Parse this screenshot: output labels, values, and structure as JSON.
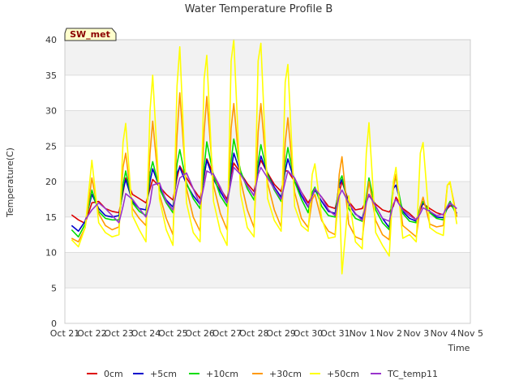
{
  "chart_data": {
    "type": "line",
    "title": "Water Temperature Profile B",
    "xlabel": "Time",
    "ylabel": "Temperature(C)",
    "badge": "SW_met",
    "ylim": [
      0,
      40
    ],
    "yticks": [
      0,
      5,
      10,
      15,
      20,
      25,
      30,
      35,
      40
    ],
    "xlim": [
      0,
      15
    ],
    "xticks": [
      "Oct 21",
      "Oct 22",
      "Oct 23",
      "Oct 24",
      "Oct 25",
      "Oct 26",
      "Oct 27",
      "Oct 28",
      "Oct 29",
      "Oct 30",
      "Oct 31",
      "Nov 1",
      "Nov 2",
      "Nov 3",
      "Nov 4",
      "Nov 5"
    ],
    "grid": true,
    "legend_position": "bottom",
    "series": [
      {
        "name": "0cm",
        "color": "#dd0000",
        "x": [
          0.25,
          0.5,
          0.75,
          1.0,
          1.25,
          1.5,
          1.75,
          2.0,
          2.15,
          2.25,
          2.5,
          2.75,
          3.0,
          3.15,
          3.25,
          3.5,
          3.75,
          4.0,
          4.15,
          4.25,
          4.5,
          4.75,
          5.0,
          5.15,
          5.25,
          5.5,
          5.75,
          6.0,
          6.15,
          6.25,
          6.5,
          6.75,
          7.0,
          7.15,
          7.25,
          7.5,
          7.75,
          8.0,
          8.15,
          8.25,
          8.5,
          8.75,
          9.0,
          9.15,
          9.25,
          9.5,
          9.75,
          10.0,
          10.15,
          10.25,
          10.5,
          10.75,
          11.0,
          11.15,
          11.25,
          11.5,
          11.75,
          12.0,
          12.15,
          12.25,
          12.5,
          12.75,
          13.0,
          13.15,
          13.25,
          13.5,
          13.75,
          14.0,
          14.15,
          14.25,
          14.5
        ],
        "y": [
          15.3,
          14.6,
          14.1,
          17.0,
          17.2,
          16.2,
          15.8,
          15.6,
          18.5,
          20.5,
          18.2,
          17.6,
          17.0,
          19.0,
          20.3,
          19.3,
          18.2,
          17.4,
          20.5,
          22.2,
          20.5,
          19.0,
          17.6,
          20.6,
          23.2,
          21.0,
          19.0,
          17.5,
          21.0,
          22.6,
          21.2,
          19.7,
          18.6,
          21.8,
          23.0,
          21.2,
          19.6,
          18.6,
          21.5,
          21.5,
          20.0,
          18.5,
          17.0,
          18.0,
          18.8,
          17.8,
          16.5,
          16.2,
          18.5,
          20.0,
          17.2,
          16.0,
          16.2,
          17.3,
          18.0,
          16.8,
          16.0,
          15.7,
          16.5,
          17.8,
          16.2,
          15.5,
          14.6,
          16.0,
          16.9,
          16.2,
          15.6,
          15.3,
          16.2,
          16.6,
          16.2
        ]
      },
      {
        "name": "+5cm",
        "color": "#0000cc",
        "x": [
          0.25,
          0.5,
          0.75,
          1.0,
          1.25,
          1.5,
          1.75,
          2.0,
          2.15,
          2.25,
          2.5,
          2.75,
          3.0,
          3.15,
          3.25,
          3.5,
          3.75,
          4.0,
          4.15,
          4.25,
          4.5,
          4.75,
          5.0,
          5.15,
          5.25,
          5.5,
          5.75,
          6.0,
          6.15,
          6.25,
          6.5,
          6.75,
          7.0,
          7.15,
          7.25,
          7.5,
          7.75,
          8.0,
          8.15,
          8.25,
          8.5,
          8.75,
          9.0,
          9.15,
          9.25,
          9.5,
          9.75,
          10.0,
          10.15,
          10.25,
          10.5,
          10.75,
          11.0,
          11.15,
          11.25,
          11.5,
          11.75,
          12.0,
          12.15,
          12.25,
          12.5,
          12.75,
          13.0,
          13.15,
          13.25,
          13.5,
          13.75,
          14.0,
          14.15,
          14.25,
          14.5
        ],
        "y": [
          13.8,
          13.0,
          14.4,
          18.2,
          16.2,
          15.2,
          15.0,
          15.2,
          18.8,
          20.3,
          17.2,
          16.2,
          16.0,
          20.0,
          21.8,
          19.2,
          17.4,
          16.4,
          21.2,
          22.0,
          19.6,
          18.0,
          16.8,
          21.0,
          23.0,
          20.3,
          18.6,
          17.0,
          21.5,
          24.0,
          21.2,
          19.4,
          18.0,
          21.8,
          23.6,
          21.0,
          19.2,
          17.8,
          21.5,
          23.2,
          20.0,
          18.0,
          16.4,
          18.0,
          18.8,
          17.2,
          15.8,
          15.5,
          19.5,
          20.3,
          16.8,
          15.4,
          14.8,
          17.2,
          18.2,
          16.5,
          14.8,
          13.5,
          19.0,
          19.5,
          15.8,
          14.8,
          14.4,
          16.2,
          17.0,
          15.8,
          15.0,
          14.9,
          16.3,
          17.0,
          15.5
        ]
      },
      {
        "name": "+10cm",
        "color": "#00dd00",
        "x": [
          0.25,
          0.5,
          0.75,
          1.0,
          1.25,
          1.5,
          1.75,
          2.0,
          2.15,
          2.25,
          2.5,
          2.75,
          3.0,
          3.15,
          3.25,
          3.5,
          3.75,
          4.0,
          4.15,
          4.25,
          4.5,
          4.75,
          5.0,
          5.15,
          5.25,
          5.5,
          5.75,
          6.0,
          6.15,
          6.25,
          6.5,
          6.75,
          7.0,
          7.15,
          7.25,
          7.5,
          7.75,
          8.0,
          8.15,
          8.25,
          8.5,
          8.75,
          9.0,
          9.15,
          9.25,
          9.5,
          9.75,
          10.0,
          10.15,
          10.25,
          10.5,
          10.75,
          11.0,
          11.15,
          11.25,
          11.5,
          11.75,
          12.0,
          12.15,
          12.25,
          12.5,
          12.75,
          13.0,
          13.15,
          13.25,
          13.5,
          13.75,
          14.0,
          14.15,
          14.25,
          14.5
        ],
        "y": [
          13.2,
          12.2,
          14.0,
          18.8,
          15.8,
          14.8,
          14.6,
          14.6,
          19.5,
          21.5,
          17.0,
          15.8,
          15.2,
          21.2,
          22.8,
          19.0,
          17.0,
          15.6,
          22.5,
          24.5,
          19.8,
          17.6,
          16.2,
          22.0,
          25.6,
          20.8,
          18.0,
          16.5,
          22.8,
          26.0,
          21.5,
          19.0,
          17.4,
          22.8,
          25.2,
          21.0,
          18.8,
          17.2,
          22.5,
          24.8,
          20.0,
          17.5,
          15.6,
          18.5,
          19.2,
          16.5,
          15.2,
          15.0,
          20.0,
          20.8,
          16.2,
          14.8,
          14.4,
          17.8,
          20.5,
          16.0,
          14.2,
          13.2,
          19.8,
          20.5,
          15.5,
          14.4,
          14.2,
          16.5,
          17.2,
          15.6,
          14.8,
          14.6,
          16.5,
          17.2,
          15.2
        ]
      },
      {
        "name": "+30cm",
        "color": "#ff9900",
        "x": [
          0.25,
          0.5,
          0.75,
          1.0,
          1.25,
          1.5,
          1.75,
          2.0,
          2.15,
          2.25,
          2.5,
          2.75,
          3.0,
          3.15,
          3.25,
          3.5,
          3.75,
          4.0,
          4.15,
          4.25,
          4.5,
          4.75,
          5.0,
          5.15,
          5.25,
          5.5,
          5.75,
          6.0,
          6.15,
          6.25,
          6.5,
          6.75,
          7.0,
          7.15,
          7.25,
          7.5,
          7.75,
          8.0,
          8.15,
          8.25,
          8.5,
          8.75,
          9.0,
          9.15,
          9.25,
          9.5,
          9.75,
          10.0,
          10.15,
          10.25,
          10.5,
          10.75,
          11.0,
          11.15,
          11.25,
          11.5,
          11.75,
          12.0,
          12.15,
          12.25,
          12.5,
          12.75,
          13.0,
          13.15,
          13.25,
          13.5,
          13.75,
          14.0,
          14.15,
          14.25,
          14.5
        ],
        "y": [
          12.0,
          11.5,
          13.5,
          20.5,
          15.5,
          13.8,
          13.2,
          13.6,
          22.0,
          24.0,
          16.2,
          14.8,
          13.8,
          24.0,
          28.5,
          18.2,
          14.8,
          12.5,
          26.5,
          32.5,
          19.0,
          15.0,
          13.0,
          27.0,
          32.0,
          19.5,
          15.5,
          13.2,
          27.5,
          31.0,
          20.2,
          16.0,
          13.5,
          27.0,
          31.0,
          19.8,
          16.0,
          13.6,
          25.5,
          29.0,
          18.5,
          14.8,
          13.5,
          17.5,
          18.2,
          14.5,
          13.0,
          12.5,
          21.0,
          23.5,
          14.0,
          12.2,
          11.8,
          17.0,
          20.0,
          14.5,
          12.5,
          11.8,
          19.0,
          21.0,
          13.8,
          13.0,
          12.2,
          16.5,
          17.8,
          14.0,
          13.6,
          13.8,
          19.5,
          19.8,
          15.0
        ]
      },
      {
        "name": "+50cm",
        "color": "#ffff00",
        "x": [
          0.25,
          0.5,
          0.75,
          1.0,
          1.25,
          1.5,
          1.75,
          2.0,
          2.15,
          2.25,
          2.5,
          2.75,
          3.0,
          3.15,
          3.25,
          3.5,
          3.75,
          4.0,
          4.15,
          4.25,
          4.5,
          4.75,
          5.0,
          5.15,
          5.25,
          5.5,
          5.75,
          6.0,
          6.15,
          6.25,
          6.5,
          6.75,
          7.0,
          7.15,
          7.25,
          7.5,
          7.75,
          8.0,
          8.15,
          8.25,
          8.5,
          8.75,
          9.0,
          9.15,
          9.25,
          9.5,
          9.75,
          10.0,
          10.15,
          10.25,
          10.5,
          10.75,
          11.0,
          11.15,
          11.25,
          11.5,
          11.75,
          12.0,
          12.15,
          12.25,
          12.5,
          12.75,
          13.0,
          13.15,
          13.25,
          13.5,
          13.75,
          14.0,
          14.15,
          14.25,
          14.5
        ],
        "y": [
          11.8,
          10.8,
          13.5,
          23.0,
          14.2,
          12.8,
          12.2,
          12.5,
          25.5,
          28.2,
          15.2,
          13.2,
          11.5,
          30.0,
          35.0,
          17.5,
          13.2,
          11.0,
          33.5,
          39.0,
          17.0,
          12.8,
          11.5,
          34.5,
          37.8,
          17.2,
          13.0,
          11.0,
          37.0,
          40.0,
          18.2,
          13.5,
          12.2,
          37.0,
          39.5,
          17.6,
          14.5,
          13.0,
          34.0,
          36.5,
          16.5,
          13.8,
          13.0,
          21.0,
          22.5,
          14.8,
          12.0,
          12.2,
          19.0,
          7.0,
          18.0,
          11.5,
          10.5,
          24.0,
          28.3,
          12.8,
          11.0,
          9.5,
          20.0,
          22.0,
          12.0,
          12.5,
          11.5,
          24.0,
          25.5,
          13.5,
          12.8,
          12.4,
          19.5,
          20.0,
          14.0
        ]
      },
      {
        "name": "TC_temp11",
        "color": "#9933cc",
        "x": [
          0.75,
          1.0,
          1.25,
          1.5,
          1.75,
          2.0,
          2.15,
          2.25,
          2.5,
          2.75,
          3.0,
          3.15,
          3.25,
          3.5,
          3.75,
          4.0,
          4.15,
          4.25,
          4.5,
          4.75,
          5.0,
          5.15,
          5.25,
          5.5,
          5.75,
          6.0,
          6.15,
          6.25,
          6.5,
          6.75,
          7.0,
          7.15,
          7.25,
          7.5,
          7.75,
          8.0,
          8.15,
          8.25,
          8.5,
          8.75,
          9.0,
          9.15,
          9.25,
          9.5,
          9.75,
          10.0,
          10.15,
          10.25,
          10.5,
          10.75,
          11.0,
          11.15,
          11.25,
          11.5,
          11.75,
          12.0,
          12.15,
          12.25,
          12.5,
          12.75,
          13.0,
          13.15,
          13.25,
          13.5,
          13.75,
          14.0,
          14.15,
          14.25,
          14.5
        ],
        "y": [
          14.6,
          16.0,
          17.0,
          16.2,
          15.2,
          14.2,
          16.5,
          18.3,
          17.5,
          16.2,
          15.0,
          17.0,
          19.5,
          19.8,
          17.2,
          16.0,
          19.0,
          20.5,
          21.2,
          19.0,
          16.8,
          19.5,
          21.5,
          21.0,
          19.2,
          17.0,
          20.0,
          22.0,
          21.0,
          19.4,
          18.0,
          21.0,
          22.0,
          20.5,
          19.0,
          17.5,
          20.0,
          21.5,
          20.5,
          18.5,
          16.5,
          18.0,
          19.0,
          17.8,
          16.0,
          15.2,
          18.0,
          18.8,
          17.0,
          15.5,
          14.5,
          17.0,
          18.2,
          16.5,
          14.8,
          14.4,
          16.8,
          17.5,
          16.0,
          15.2,
          14.6,
          15.5,
          16.3,
          15.8,
          15.2,
          15.4,
          16.5,
          17.0,
          16.2
        ]
      }
    ]
  }
}
